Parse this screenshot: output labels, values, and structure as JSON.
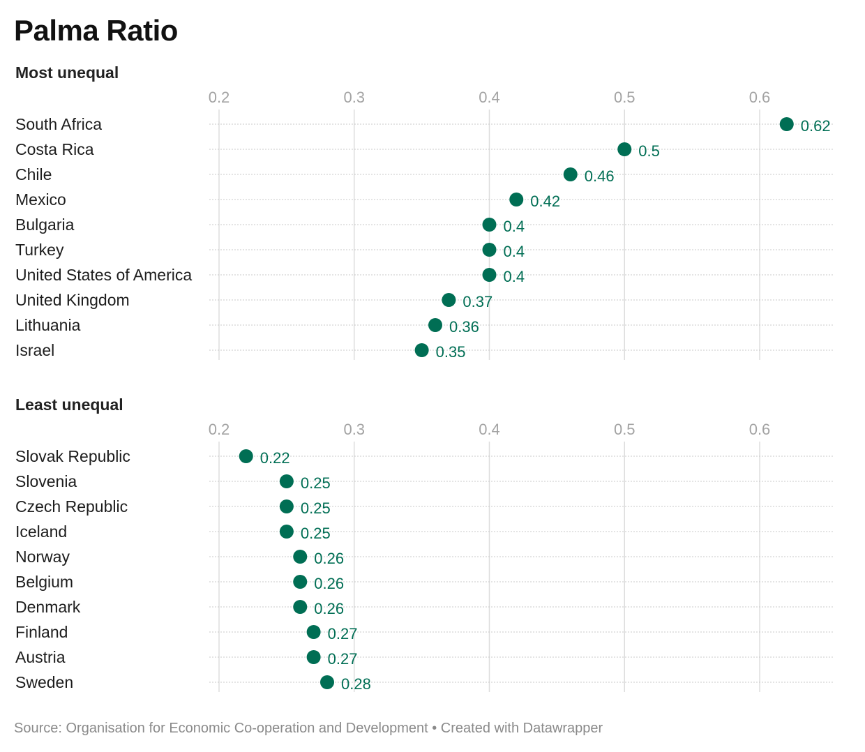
{
  "title": "Palma Ratio",
  "footer": {
    "source": "Source: Organisation for Economic Co-operation and Development",
    "separator": "•",
    "credit": "Created with Datawrapper"
  },
  "colors": {
    "dot": "#006e54",
    "label": "#006e54",
    "gridline": "#dddddd",
    "rowline": "#c8c8c8",
    "tick": "#a3a3a3"
  },
  "chart_data": [
    {
      "type": "scatter",
      "title": "Most unequal",
      "xlim": [
        0.2,
        0.66
      ],
      "ticks": [
        0.2,
        0.3,
        0.4,
        0.5,
        0.6
      ],
      "tick_labels": [
        "0.2",
        "0.3",
        "0.4",
        "0.5",
        "0.6"
      ],
      "grid": true,
      "points": [
        {
          "country": "South Africa",
          "value": 0.62,
          "label": "0.62"
        },
        {
          "country": "Costa Rica",
          "value": 0.5,
          "label": "0.5"
        },
        {
          "country": "Chile",
          "value": 0.46,
          "label": "0.46"
        },
        {
          "country": "Mexico",
          "value": 0.42,
          "label": "0.42"
        },
        {
          "country": "Bulgaria",
          "value": 0.4,
          "label": "0.4"
        },
        {
          "country": "Turkey",
          "value": 0.4,
          "label": "0.4"
        },
        {
          "country": "United States of America",
          "value": 0.4,
          "label": "0.4"
        },
        {
          "country": "United Kingdom",
          "value": 0.37,
          "label": "0.37"
        },
        {
          "country": "Lithuania",
          "value": 0.36,
          "label": "0.36"
        },
        {
          "country": "Israel",
          "value": 0.35,
          "label": "0.35"
        }
      ]
    },
    {
      "type": "scatter",
      "title": "Least unequal",
      "xlim": [
        0.2,
        0.66
      ],
      "ticks": [
        0.2,
        0.3,
        0.4,
        0.5,
        0.6
      ],
      "tick_labels": [
        "0.2",
        "0.3",
        "0.4",
        "0.5",
        "0.6"
      ],
      "grid": true,
      "points": [
        {
          "country": "Slovak Republic",
          "value": 0.22,
          "label": "0.22"
        },
        {
          "country": "Slovenia",
          "value": 0.25,
          "label": "0.25"
        },
        {
          "country": "Czech Republic",
          "value": 0.25,
          "label": "0.25"
        },
        {
          "country": "Iceland",
          "value": 0.25,
          "label": "0.25"
        },
        {
          "country": "Norway",
          "value": 0.26,
          "label": "0.26"
        },
        {
          "country": "Belgium",
          "value": 0.26,
          "label": "0.26"
        },
        {
          "country": "Denmark",
          "value": 0.26,
          "label": "0.26"
        },
        {
          "country": "Finland",
          "value": 0.27,
          "label": "0.27"
        },
        {
          "country": "Austria",
          "value": 0.27,
          "label": "0.27"
        },
        {
          "country": "Sweden",
          "value": 0.28,
          "label": "0.28"
        }
      ]
    }
  ]
}
